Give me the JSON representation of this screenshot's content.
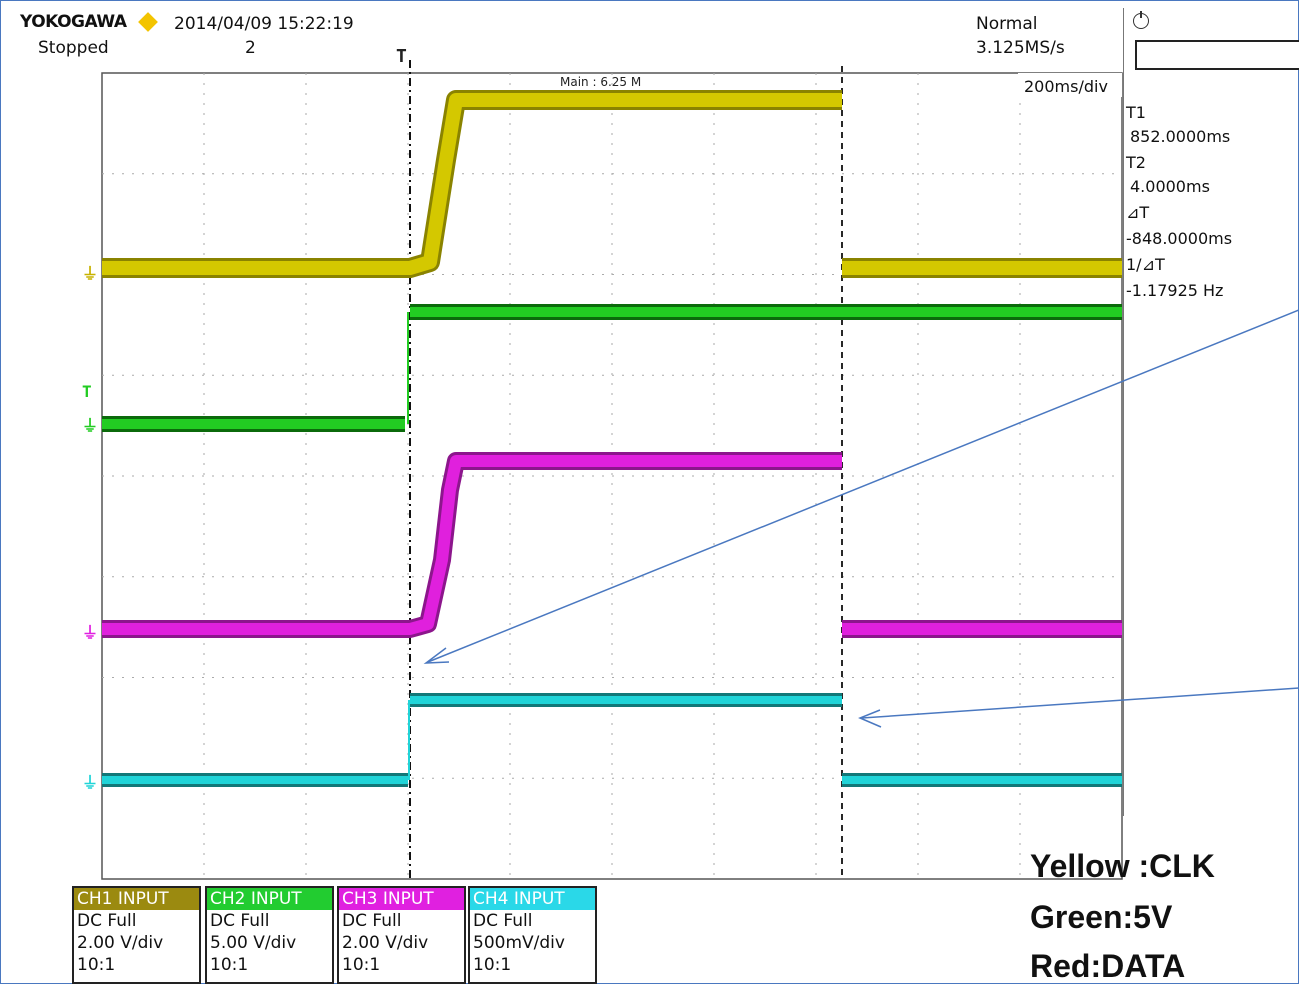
{
  "header": {
    "brand": "YOKOGAWA",
    "timestamp": "2014/04/09 15:22:19",
    "status": "Stopped",
    "acq_count": "2",
    "trigger_mode": "Normal",
    "sample_rate": "3.125MS/s",
    "timebase": "200ms/div",
    "record_length": "Main : 6.25 M"
  },
  "measurements": {
    "t1_label": "T1",
    "t1_value": "852.0000ms",
    "t2_label": "T2",
    "t2_value": "4.0000ms",
    "dt_label": "⊿T",
    "dt_value": "-848.0000ms",
    "inv_dt_label": "1/⊿T",
    "inv_dt_value": "-1.17925 Hz"
  },
  "channels": [
    {
      "name": "CH1 INPUT",
      "coupling": "DC Full",
      "scale": "2.00 V/div",
      "probe": "10:1",
      "color": "#a08f10",
      "trace": "#d4c800",
      "trace_dark": "#8a8300"
    },
    {
      "name": "CH2 INPUT",
      "coupling": "DC Full",
      "scale": "5.00 V/div",
      "probe": "10:1",
      "color": "#25d030",
      "trace": "#22cc22",
      "trace_dark": "#0b6a0b"
    },
    {
      "name": "CH3 INPUT",
      "coupling": "DC Full",
      "scale": "2.00 V/div",
      "probe": "10:1",
      "color": "#e020e0",
      "trace": "#e020dd",
      "trace_dark": "#8c168c"
    },
    {
      "name": "CH4 INPUT",
      "coupling": "DC Full",
      "scale": "500mV/div",
      "probe": "10:1",
      "color": "#2ad8e8",
      "trace": "#20d4d8",
      "trace_dark": "#127878"
    }
  ],
  "markers": {
    "trigger": "T",
    "ch2_trigger": "T"
  },
  "legend": {
    "line1": "Yellow :CLK",
    "line2": "Green:5V",
    "line3": "Red:DATA"
  }
}
